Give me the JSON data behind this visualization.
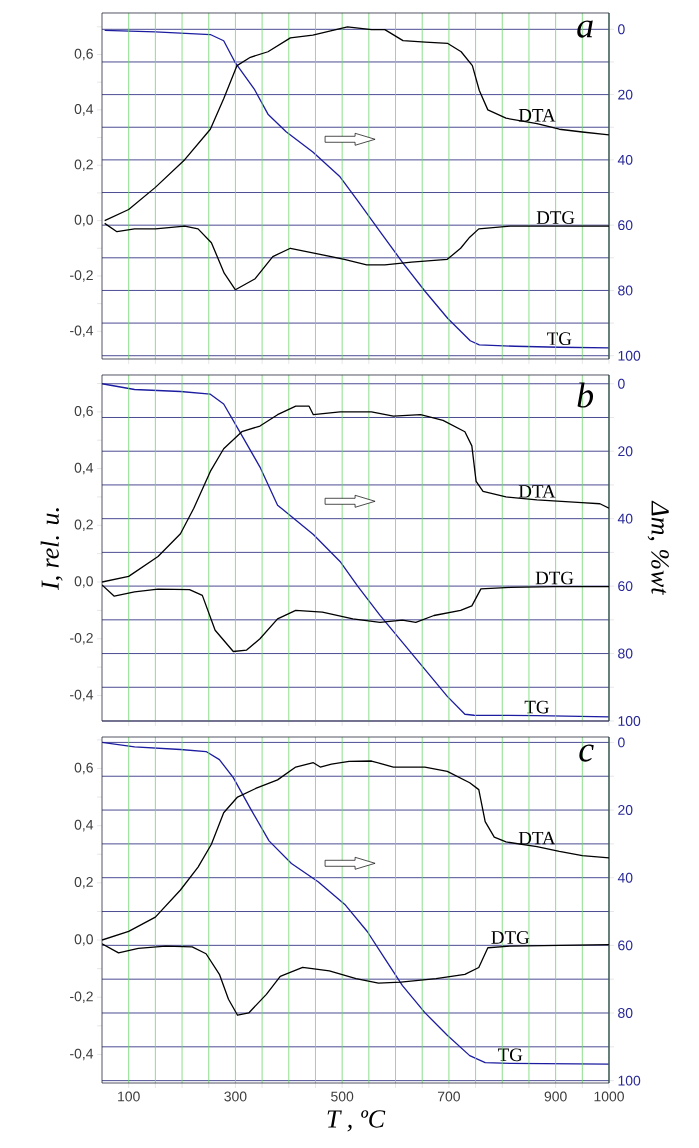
{
  "chart_data": [
    {
      "type": "line",
      "title": "a",
      "xlim": [
        50,
        1000
      ],
      "ylim": [
        -0.5,
        0.75
      ],
      "y2lim": [
        101,
        -5
      ],
      "grid": true,
      "marker": "none",
      "tick_labels": "y",
      "xticks": [
        100,
        {
          "value": 150,
          "label": null
        },
        {
          "value": 200,
          "label": null
        },
        {
          "value": 250,
          "label": null
        },
        300,
        {
          "value": 350,
          "label": null
        },
        {
          "value": 400,
          "label": null
        },
        {
          "value": 450,
          "label": null
        },
        500,
        {
          "value": 550,
          "label": null
        },
        {
          "value": 600,
          "label": null
        },
        {
          "value": 650,
          "label": null
        },
        700,
        {
          "value": 750,
          "label": null
        },
        {
          "value": 800,
          "label": null
        },
        {
          "value": 850,
          "label": null
        },
        900,
        {
          "value": 950,
          "label": null
        },
        1000
      ],
      "yticks": [
        {
          "value": -0.4,
          "label": "-0,4"
        },
        {
          "value": -0.3,
          "label": null
        },
        {
          "value": -0.2,
          "label": "-0,2"
        },
        {
          "value": -0.1,
          "label": null
        },
        {
          "value": 0,
          "label": "0,0"
        },
        {
          "value": 0.1,
          "label": null
        },
        {
          "value": 0.2,
          "label": "0,2"
        },
        {
          "value": 0.3,
          "label": null
        },
        {
          "value": 0.4,
          "label": "0,4"
        },
        {
          "value": 0.5,
          "label": null
        },
        {
          "value": 0.6,
          "label": "0,6"
        },
        {
          "value": 0.7,
          "label": null
        }
      ],
      "y2ticks": [
        0,
        {
          "value": 10,
          "label": null
        },
        20,
        {
          "value": 30,
          "label": null
        },
        40,
        {
          "value": 50,
          "label": null
        },
        60,
        {
          "value": 70,
          "label": null
        },
        80,
        {
          "value": 90,
          "label": null
        },
        100
      ],
      "series": [
        {
          "name": "DTA",
          "color": "#000000",
          "x": [
            55,
            100,
            150,
            205,
            253,
            278,
            303,
            328,
            361,
            403,
            445,
            510,
            555,
            580,
            614,
            656,
            698,
            723,
            744,
            757,
            773,
            807,
            865,
            907,
            950,
            1000
          ],
          "values": [
            0.0,
            0.04,
            0.12,
            0.22,
            0.33,
            0.44,
            0.56,
            0.59,
            0.61,
            0.66,
            0.67,
            0.7,
            0.69,
            0.69,
            0.65,
            0.645,
            0.64,
            0.61,
            0.56,
            0.47,
            0.4,
            0.37,
            0.35,
            0.33,
            0.32,
            0.31
          ]
        },
        {
          "name": "DTG",
          "color": "#000000",
          "x": [
            55,
            78,
            111,
            150,
            205,
            230,
            255,
            279,
            300,
            337,
            370,
            403,
            454,
            504,
            546,
            580,
            630,
            697,
            722,
            739,
            756,
            815,
            900,
            1000
          ],
          "values": [
            -0.01,
            -0.04,
            -0.03,
            -0.03,
            -0.02,
            -0.03,
            -0.08,
            -0.19,
            -0.25,
            -0.21,
            -0.13,
            -0.1,
            -0.12,
            -0.14,
            -0.16,
            -0.16,
            -0.15,
            -0.14,
            -0.1,
            -0.06,
            -0.03,
            -0.02,
            -0.02,
            -0.02
          ]
        },
        {
          "name": "TG",
          "color": "#1c1ca0",
          "axis": "y2",
          "x": [
            55,
            150,
            253,
            278,
            300,
            336,
            361,
            395,
            445,
            495,
            529,
            571,
            614,
            656,
            698,
            740,
            757,
            824,
            907,
            1000
          ],
          "values": [
            0.3,
            0.8,
            1.6,
            3.5,
            10.3,
            18.5,
            26,
            31.4,
            37.6,
            45,
            52.5,
            62,
            71.6,
            80.4,
            88.6,
            95.4,
            96.7,
            97.1,
            97.4,
            97.6
          ]
        }
      ]
    },
    {
      "type": "line",
      "title": "b",
      "ylabel": "I, rel. u.",
      "y2label": "Δm, %wt",
      "xlim": [
        50,
        1000
      ],
      "ylim": [
        -0.49,
        0.73
      ],
      "y2lim": [
        100,
        -2.6
      ],
      "grid": true,
      "marker": "none",
      "tick_labels": "y",
      "xticks": [
        100,
        {
          "value": 150,
          "label": null
        },
        {
          "value": 200,
          "label": null
        },
        {
          "value": 250,
          "label": null
        },
        300,
        {
          "value": 350,
          "label": null
        },
        {
          "value": 400,
          "label": null
        },
        {
          "value": 450,
          "label": null
        },
        500,
        {
          "value": 550,
          "label": null
        },
        {
          "value": 600,
          "label": null
        },
        {
          "value": 650,
          "label": null
        },
        700,
        {
          "value": 750,
          "label": null
        },
        {
          "value": 800,
          "label": null
        },
        {
          "value": 850,
          "label": null
        },
        900,
        {
          "value": 950,
          "label": null
        },
        1000
      ],
      "yticks": [
        {
          "value": -0.4,
          "label": "-0,4"
        },
        {
          "value": -0.3,
          "label": null
        },
        {
          "value": -0.2,
          "label": "-0,2"
        },
        {
          "value": -0.1,
          "label": null
        },
        {
          "value": 0,
          "label": "0,0"
        },
        {
          "value": 0.1,
          "label": null
        },
        {
          "value": 0.2,
          "label": "0,2"
        },
        {
          "value": 0.3,
          "label": null
        },
        {
          "value": 0.4,
          "label": "0,4"
        },
        {
          "value": 0.5,
          "label": null
        },
        {
          "value": 0.6,
          "label": "0,6"
        },
        {
          "value": 0.7,
          "label": null
        }
      ],
      "y2ticks": [
        0,
        {
          "value": 10,
          "label": null
        },
        20,
        {
          "value": 30,
          "label": null
        },
        40,
        {
          "value": 50,
          "label": null
        },
        60,
        {
          "value": 70,
          "label": null
        },
        80,
        {
          "value": 90,
          "label": null
        },
        100
      ],
      "series": [
        {
          "name": "DTA",
          "color": "#000000",
          "x": [
            50,
            100,
            155,
            197,
            222,
            253,
            278,
            312,
            346,
            379,
            413,
            438,
            446,
            496,
            555,
            596,
            647,
            689,
            730,
            743,
            751,
            764,
            807,
            865,
            949,
            983,
            1000
          ],
          "values": [
            0.0,
            0.02,
            0.09,
            0.17,
            0.26,
            0.39,
            0.47,
            0.53,
            0.55,
            0.59,
            0.62,
            0.62,
            0.59,
            0.6,
            0.6,
            0.585,
            0.59,
            0.57,
            0.53,
            0.48,
            0.355,
            0.32,
            0.3,
            0.29,
            0.28,
            0.276,
            0.26
          ]
        },
        {
          "name": "DTG",
          "color": "#000000",
          "x": [
            50,
            73,
            111,
            155,
            214,
            238,
            262,
            296,
            321,
            346,
            379,
            413,
            463,
            520,
            571,
            613,
            638,
            672,
            722,
            743,
            760,
            815,
            898,
            1000
          ],
          "values": [
            -0.01,
            -0.05,
            -0.035,
            -0.025,
            -0.027,
            -0.047,
            -0.17,
            -0.245,
            -0.24,
            -0.2,
            -0.13,
            -0.1,
            -0.106,
            -0.13,
            -0.142,
            -0.134,
            -0.142,
            -0.118,
            -0.1,
            -0.084,
            -0.024,
            -0.019,
            -0.016,
            -0.016
          ]
        },
        {
          "name": "TG",
          "color": "#1c1ca0",
          "axis": "y2",
          "x": [
            50,
            111,
            197,
            253,
            278,
            312,
            346,
            379,
            446,
            496,
            529,
            571,
            613,
            655,
            697,
            730,
            747,
            865,
            1000
          ],
          "values": [
            0,
            1.7,
            2.3,
            3.1,
            6,
            15.3,
            24.7,
            36,
            44.7,
            52.7,
            60,
            68.7,
            76.7,
            84.7,
            92.7,
            98,
            98.3,
            98.4,
            98.8
          ]
        }
      ]
    },
    {
      "type": "line",
      "title": "c",
      "xlabel": "T , ºC",
      "xlim": [
        50,
        1000
      ],
      "ylim": [
        -0.5,
        0.71
      ],
      "y2lim": [
        100.7,
        -1.6
      ],
      "grid": true,
      "marker": "none",
      "xticks": [
        100,
        {
          "value": 150,
          "label": null
        },
        {
          "value": 200,
          "label": null
        },
        {
          "value": 250,
          "label": null
        },
        300,
        {
          "value": 350,
          "label": null
        },
        {
          "value": 400,
          "label": null
        },
        {
          "value": 450,
          "label": null
        },
        500,
        {
          "value": 550,
          "label": null
        },
        {
          "value": 600,
          "label": null
        },
        {
          "value": 650,
          "label": null
        },
        700,
        {
          "value": 750,
          "label": null
        },
        {
          "value": 800,
          "label": null
        },
        {
          "value": 850,
          "label": null
        },
        900,
        {
          "value": 950,
          "label": null
        },
        1000
      ],
      "yticks": [
        {
          "value": -0.4,
          "label": "-0,4"
        },
        {
          "value": -0.3,
          "label": null
        },
        {
          "value": -0.2,
          "label": "-0,2"
        },
        {
          "value": -0.1,
          "label": null
        },
        {
          "value": 0,
          "label": "0,0"
        },
        {
          "value": 0.1,
          "label": null
        },
        {
          "value": 0.2,
          "label": "0,2"
        },
        {
          "value": 0.3,
          "label": null
        },
        {
          "value": 0.4,
          "label": "0,4"
        },
        {
          "value": 0.5,
          "label": null
        },
        {
          "value": 0.6,
          "label": "0,6"
        },
        {
          "value": 0.7,
          "label": null
        }
      ],
      "y2ticks": [
        0,
        {
          "value": 10,
          "label": null
        },
        20,
        {
          "value": 30,
          "label": null
        },
        40,
        {
          "value": 50,
          "label": null
        },
        60,
        {
          "value": 70,
          "label": null
        },
        80,
        {
          "value": 90,
          "label": null
        },
        100
      ],
      "series": [
        {
          "name": "DTA",
          "color": "#000000",
          "x": [
            50,
            100,
            150,
            197,
            230,
            255,
            278,
            304,
            338,
            379,
            413,
            446,
            459,
            480,
            513,
            555,
            596,
            655,
            697,
            739,
            756,
            768,
            785,
            807,
            865,
            907,
            950,
            1000
          ],
          "values": [
            0.0,
            0.03,
            0.08,
            0.175,
            0.255,
            0.335,
            0.445,
            0.5,
            0.53,
            0.56,
            0.605,
            0.62,
            0.605,
            0.615,
            0.625,
            0.626,
            0.605,
            0.605,
            0.59,
            0.55,
            0.526,
            0.414,
            0.36,
            0.343,
            0.327,
            0.31,
            0.295,
            0.287
          ]
        },
        {
          "name": "DTG",
          "color": "#000000",
          "x": [
            50,
            81,
            118,
            169,
            219,
            245,
            270,
            287,
            304,
            325,
            358,
            384,
            426,
            476,
            526,
            568,
            610,
            676,
            730,
            756,
            773,
            815,
            1000
          ],
          "values": [
            -0.013,
            -0.045,
            -0.029,
            -0.021,
            -0.024,
            -0.048,
            -0.12,
            -0.207,
            -0.263,
            -0.255,
            -0.19,
            -0.127,
            -0.096,
            -0.108,
            -0.135,
            -0.151,
            -0.147,
            -0.135,
            -0.12,
            -0.096,
            -0.027,
            -0.021,
            -0.016
          ]
        },
        {
          "name": "TG",
          "color": "#1c1ca0",
          "axis": "y2",
          "x": [
            50,
            111,
            197,
            245,
            270,
            296,
            329,
            363,
            405,
            455,
            505,
            547,
            580,
            613,
            655,
            697,
            739,
            768,
            815,
            1000
          ],
          "values": [
            0,
            1.3,
            2.1,
            2.7,
            5.1,
            10.4,
            19.8,
            29.1,
            35.8,
            41.2,
            47.9,
            55.9,
            63.9,
            71.9,
            79.9,
            86.6,
            92.6,
            94.7,
            94.9,
            95.1
          ]
        }
      ]
    }
  ]
}
